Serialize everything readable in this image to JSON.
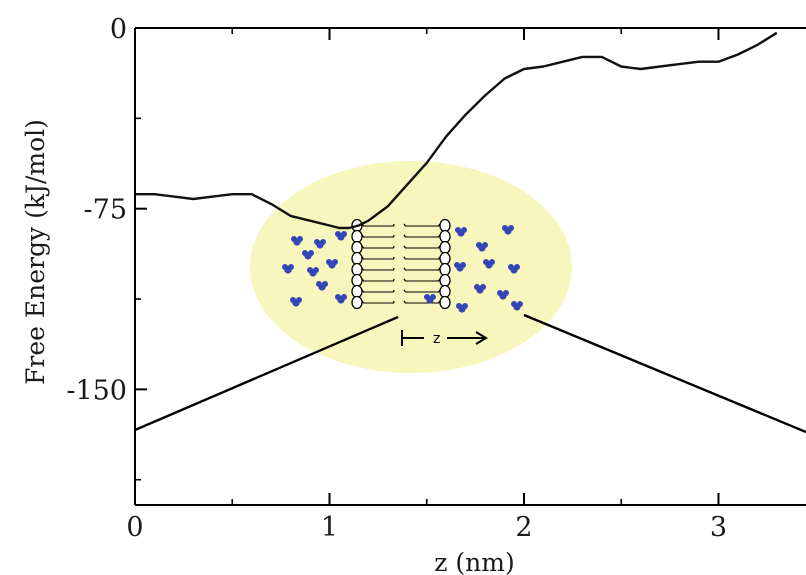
{
  "chart_data": {
    "type": "line",
    "title": "",
    "xlabel": "z (nm)",
    "ylabel": "Free Energy (kJ/mol)",
    "xlim": [
      0,
      3.45
    ],
    "ylim": [
      -198,
      0
    ],
    "x_ticks": [
      0,
      1,
      2,
      3
    ],
    "y_ticks": [
      0,
      -75,
      -150
    ],
    "x_tick_labels": [
      "0",
      "1",
      "2",
      "3"
    ],
    "y_tick_labels": [
      "0",
      "-75",
      "-150"
    ],
    "grid": false,
    "series": [
      {
        "x": [
          0.0,
          0.1,
          0.2,
          0.3,
          0.4,
          0.5,
          0.6,
          0.7,
          0.8,
          0.9,
          1.0,
          1.05,
          1.1,
          1.15,
          1.2,
          1.3,
          1.4,
          1.5,
          1.6,
          1.7,
          1.8,
          1.9,
          2.0,
          2.1,
          2.2,
          2.3,
          2.4,
          2.5,
          2.6,
          2.7,
          2.8,
          2.9,
          3.0,
          3.1,
          3.2,
          3.3
        ],
        "y": [
          -69,
          -69,
          -70,
          -71,
          -70,
          -69,
          -69,
          -73,
          -78,
          -80,
          -82,
          -83,
          -83,
          -82,
          -80,
          -74,
          -65,
          -56,
          -45,
          -36,
          -28,
          -21,
          -17,
          -16,
          -14,
          -12,
          -12,
          -16,
          -17,
          -16,
          -15,
          -14,
          -14,
          -11,
          -7,
          -2
        ]
      }
    ],
    "color": "#111111"
  },
  "inset": {
    "label": "z",
    "ellipse_color": "#f7f6bc",
    "molecule_color": "#3346b8"
  }
}
